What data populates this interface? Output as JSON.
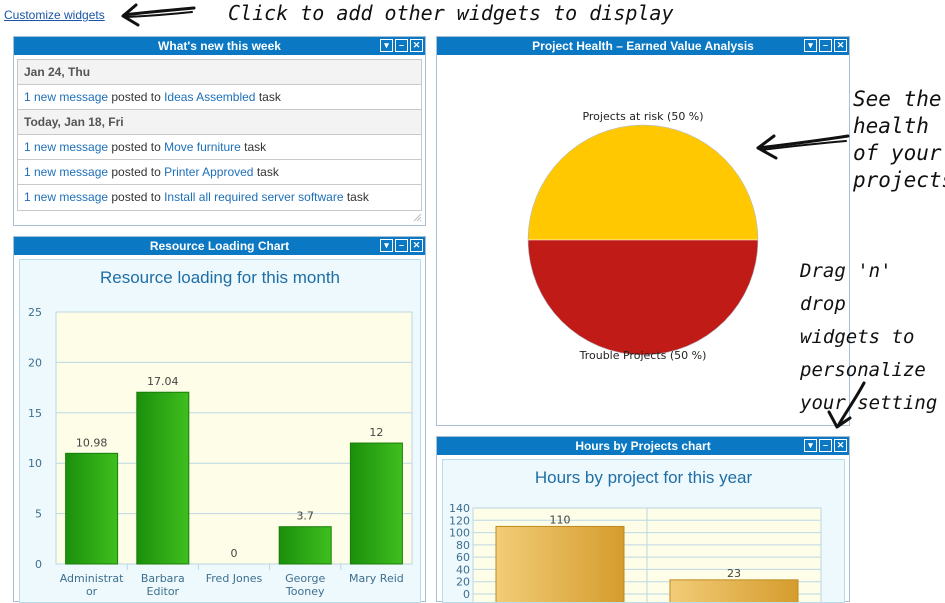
{
  "top": {
    "customize_link": "Customize widgets",
    "annotation_customize": "Click to add other widgets to display"
  },
  "annotations": {
    "health": [
      "See the",
      "health",
      "of your",
      "projects"
    ],
    "drag": [
      "Drag 'n' drop",
      "widgets to",
      "personalize",
      "your setting"
    ]
  },
  "whats_new": {
    "title": "What's new this week",
    "rows": [
      {
        "type": "date",
        "text": "Jan 24, Thu"
      },
      {
        "type": "msg",
        "link": "1 new message",
        "mid": " posted to ",
        "task": "Ideas Assembled",
        "tail": " task"
      },
      {
        "type": "date",
        "text": "Today, Jan 18, Fri"
      },
      {
        "type": "msg",
        "link": "1 new message",
        "mid": " posted to ",
        "task": "Move furniture",
        "tail": " task"
      },
      {
        "type": "msg",
        "link": "1 new message",
        "mid": " posted to ",
        "task": "Printer Approved",
        "tail": " task"
      },
      {
        "type": "msg",
        "link": "1 new message",
        "mid": " posted to ",
        "task": "Install all required server software",
        "tail": " task"
      }
    ]
  },
  "resource_widget": {
    "title": "Resource Loading Chart"
  },
  "health_widget": {
    "title": "Project Health – Earned Value Analysis"
  },
  "hours_widget": {
    "title": "Hours by Projects chart"
  },
  "widget_buttons": {
    "collapse": "▾",
    "minimize": "–",
    "close": "✕"
  },
  "colors": {
    "header": "#0a78c2",
    "bar_green": "#2aa314",
    "bar_gold": "#e3b04f",
    "pie_yellow": "#ffc800",
    "pie_red": "#c11b17"
  },
  "chart_data": [
    {
      "type": "bar",
      "title": "Resource loading for this month",
      "categories": [
        [
          "Administrat",
          "or"
        ],
        [
          "Barbara",
          "Editor"
        ],
        [
          "Fred Jones"
        ],
        [
          "George",
          "Tooney"
        ],
        [
          "Mary Reid"
        ]
      ],
      "values": [
        10.98,
        17.04,
        0,
        3.7,
        12
      ],
      "value_labels": [
        "10.98",
        "17.04",
        "0",
        "3.7",
        "12"
      ],
      "yticks": [
        0,
        5,
        10,
        15,
        20,
        25
      ],
      "ylim": [
        0,
        25
      ],
      "grid": true
    },
    {
      "type": "pie",
      "labels": [
        "Projects at risk (50 %)",
        "Trouble Projects (50 %)"
      ],
      "values": [
        50,
        50
      ],
      "colors": [
        "#ffc800",
        "#c11b17"
      ]
    },
    {
      "type": "bar",
      "title": "Hours by project for this year",
      "values": [
        110,
        23
      ],
      "value_labels": [
        "110",
        "23"
      ],
      "yticks": [
        0,
        20,
        40,
        60,
        80,
        100,
        120,
        140
      ],
      "ylim": [
        0,
        140
      ],
      "grid": true
    }
  ]
}
